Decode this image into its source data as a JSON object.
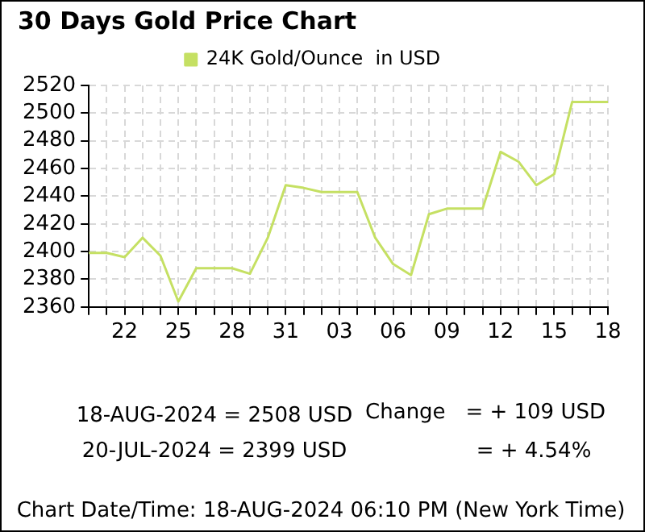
{
  "chart_data": {
    "type": "line",
    "title": "30 Days Gold Price Chart",
    "categories": [
      null,
      null,
      "22",
      null,
      null,
      "25",
      null,
      null,
      "28",
      null,
      null,
      "31",
      null,
      null,
      "03",
      null,
      null,
      "06",
      null,
      null,
      "09",
      null,
      null,
      "12",
      null,
      null,
      "15",
      null,
      null,
      "18"
    ],
    "series": [
      {
        "name": "24K Gold/Ounce  in USD",
        "color": "#c5e063",
        "values": [
          2399,
          2399,
          2396,
          2410,
          2397,
          2364,
          2388,
          2388,
          2388,
          2384,
          2410,
          2448,
          2446,
          2443,
          2443,
          2443,
          2410,
          2391,
          2383,
          2427,
          2431,
          2431,
          2431,
          2472,
          2465,
          2448,
          2456,
          2508,
          2508,
          2508
        ]
      }
    ],
    "ylim": [
      2360,
      2520
    ],
    "yticks": [
      2360,
      2380,
      2400,
      2420,
      2440,
      2460,
      2480,
      2500,
      2520
    ],
    "grid": true,
    "legend": "top",
    "marker": "none",
    "line_style": "solid",
    "annotations": [
      "18-AUG-2024 = 2508 USD",
      "20-JUL-2024 = 2399 USD",
      "Change   = + 109 USD",
      "= + 4.54%",
      "Chart Date/Time: 18-AUG-2024 06:10 PM (New York Time)"
    ]
  }
}
